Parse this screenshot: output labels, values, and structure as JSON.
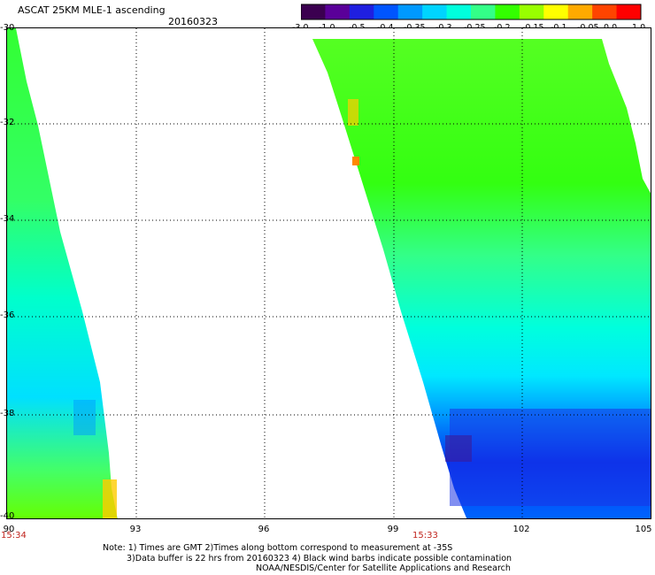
{
  "title": "ASCAT 25KM MLE-1 ascending",
  "date": "20160323",
  "colorbar": {
    "colors": [
      "#3b0050",
      "#5a0099",
      "#1f1fe0",
      "#0055ff",
      "#0099ff",
      "#00d4ff",
      "#00ffdd",
      "#33ff88",
      "#33ff00",
      "#99ff00",
      "#ffff00",
      "#ffaa00",
      "#ff4400",
      "#ff0000"
    ],
    "ticks": [
      "-3.0",
      "-1.0",
      "-0.5",
      "-0.4",
      "-0.35",
      "-0.3",
      "-0.25",
      "-0.2",
      "-0.15",
      "-0.1",
      "-0.05",
      "0.0",
      "1.0"
    ]
  },
  "map": {
    "lat_labels": [
      "-30",
      "-32",
      "-34",
      "-36",
      "-38",
      "-40"
    ],
    "lon_labels": [
      "90",
      "93",
      "96",
      "99",
      "102",
      "105"
    ],
    "times": [
      "15:34",
      "15:33"
    ]
  },
  "notes": {
    "line1": "Note: 1) Times are GMT 2)Times along bottom correspond to measurement at -35S",
    "line2": "3)Data buffer is 22 hrs from 20160323 4) Black wind barbs indicate possible contamination",
    "line3": "NOAA/NESDIS/Center for Satellite Applications and Research"
  }
}
